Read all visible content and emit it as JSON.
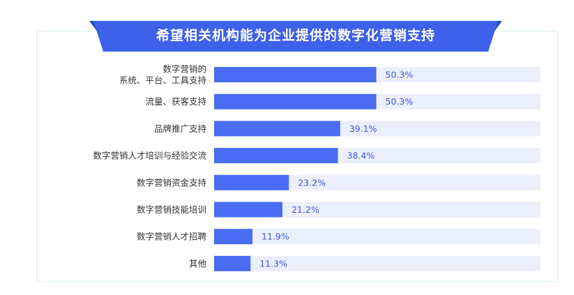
{
  "chart_data": {
    "type": "bar",
    "orientation": "horizontal",
    "title": "希望相关机构能为企业提供的数字化营销支持",
    "categories": [
      [
        "数字营销的",
        "系统、平台、工具支持"
      ],
      [
        "流量、获客支持"
      ],
      [
        "品牌推广支持"
      ],
      [
        "数字营销人才培训与经验交流"
      ],
      [
        "数字营销资金支持"
      ],
      [
        "数字营销技能培训"
      ],
      [
        "数字营销人才招聘"
      ],
      [
        "其他"
      ]
    ],
    "values": [
      50.3,
      50.3,
      39.1,
      38.4,
      23.2,
      21.2,
      11.9,
      11.3
    ],
    "value_labels": [
      "50.3%",
      "50.3%",
      "39.1%",
      "38.4%",
      "23.2%",
      "21.2%",
      "11.9%",
      "11.3%"
    ],
    "xlim": [
      0,
      100
    ],
    "grid": false,
    "colors": {
      "bar": "#4a6cf2",
      "track": "#ebeefb",
      "banner": "#3d61e8",
      "banner_edge": "#2b47b8"
    }
  }
}
